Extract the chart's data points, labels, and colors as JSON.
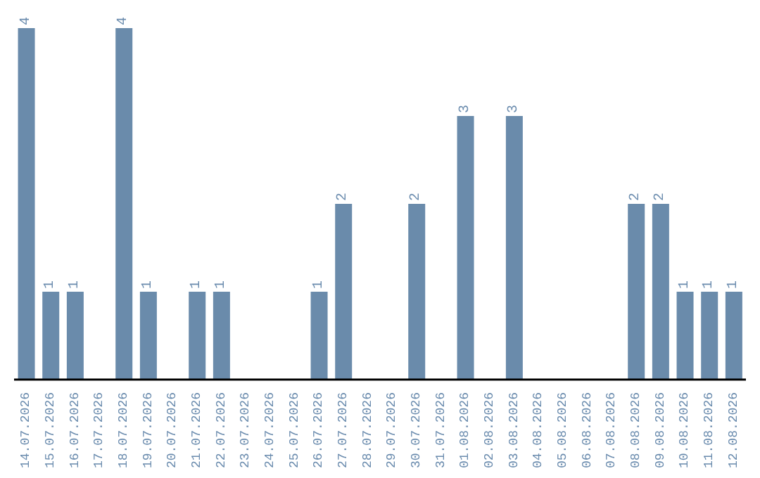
{
  "chart_data": {
    "type": "bar",
    "categories": [
      "14.07.2026",
      "15.07.2026",
      "16.07.2026",
      "17.07.2026",
      "18.07.2026",
      "19.07.2026",
      "20.07.2026",
      "21.07.2026",
      "22.07.2026",
      "23.07.2026",
      "24.07.2026",
      "25.07.2026",
      "26.07.2026",
      "27.07.2026",
      "28.07.2026",
      "29.07.2026",
      "30.07.2026",
      "31.07.2026",
      "01.08.2026",
      "02.08.2026",
      "03.08.2026",
      "04.08.2026",
      "05.08.2026",
      "06.08.2026",
      "07.08.2026",
      "08.08.2026",
      "09.08.2026",
      "10.08.2026",
      "11.08.2026",
      "12.08.2026"
    ],
    "values": [
      4,
      1,
      1,
      0,
      4,
      1,
      0,
      1,
      1,
      0,
      0,
      0,
      1,
      2,
      0,
      0,
      2,
      0,
      3,
      0,
      3,
      0,
      0,
      0,
      0,
      2,
      2,
      1,
      1,
      1
    ],
    "value_labels": [
      "4",
      "1",
      "1",
      null,
      "4",
      "1",
      null,
      "1",
      "1",
      null,
      null,
      null,
      "1",
      "2",
      null,
      null,
      "2",
      null,
      "3",
      null,
      "3",
      null,
      null,
      null,
      null,
      "2",
      "2",
      "1",
      "1",
      "1"
    ],
    "color": "#6a8bab",
    "ylim": [
      0,
      4
    ],
    "grid": false,
    "legend": false
  }
}
